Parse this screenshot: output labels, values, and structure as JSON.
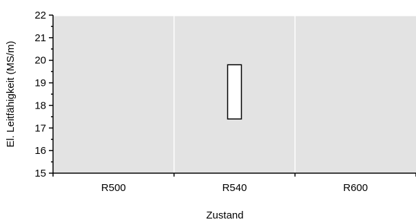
{
  "chart_data": {
    "type": "bar",
    "categories": [
      "R500",
      "R540",
      "R600"
    ],
    "ranges": [
      {
        "category": "R500",
        "low": null,
        "high": null
      },
      {
        "category": "R540",
        "low": 17.4,
        "high": 19.8
      },
      {
        "category": "R600",
        "low": null,
        "high": null
      }
    ],
    "xlabel": "Zustand",
    "ylabel": "El. Leitfähigkeit  (MS/m)",
    "ylim": [
      15,
      22
    ],
    "yticks": [
      15,
      16,
      17,
      18,
      19,
      20,
      21,
      22
    ],
    "grid": true,
    "legend": "none",
    "colors": {
      "plot_background": "#e3e3e3",
      "grid": "#ffffff",
      "bar_fill": "#ffffff",
      "bar_stroke": "#000000",
      "axis": "#000000"
    }
  }
}
